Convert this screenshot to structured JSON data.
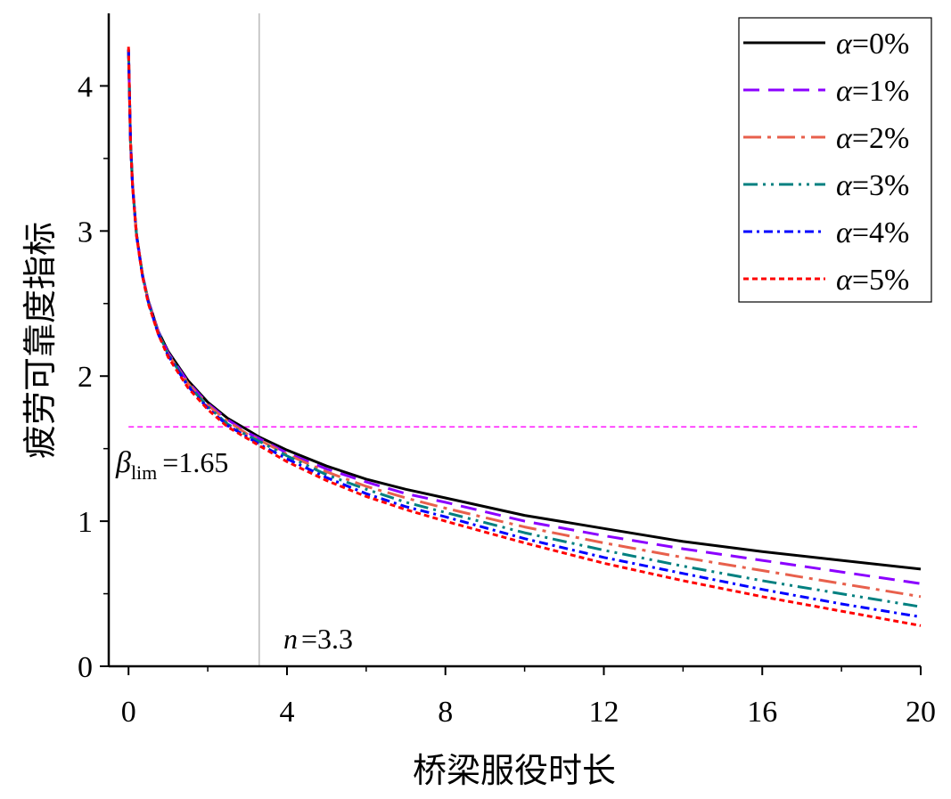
{
  "chart_data": {
    "type": "line",
    "title": "",
    "xlabel": "桥梁服役时长",
    "ylabel": "疲劳可靠度指标",
    "xlim": [
      -0.5,
      20
    ],
    "ylim": [
      0,
      4.5
    ],
    "xticks": [
      0,
      4,
      8,
      12,
      16,
      20
    ],
    "xtick_labels": [
      "0",
      "4",
      "8",
      "12",
      "16",
      "20"
    ],
    "yticks": [
      0,
      1,
      2,
      3,
      4
    ],
    "ytick_labels": [
      "0",
      "1",
      "2",
      "3",
      "4"
    ],
    "grid": false,
    "legend_position": "top-right",
    "x": [
      0,
      0.05,
      0.1,
      0.2,
      0.35,
      0.5,
      0.75,
      1,
      1.5,
      2,
      2.5,
      3,
      3.3,
      4,
      5,
      6,
      7,
      8,
      10,
      12,
      14,
      16,
      18,
      20
    ],
    "series": [
      {
        "name_prefix": "α",
        "name_suffix": "=0%",
        "color": "#000000",
        "dash": "solid",
        "values": [
          4.25,
          3.62,
          3.32,
          2.98,
          2.7,
          2.52,
          2.31,
          2.17,
          1.97,
          1.82,
          1.71,
          1.63,
          1.58,
          1.49,
          1.38,
          1.29,
          1.22,
          1.16,
          1.04,
          0.95,
          0.86,
          0.79,
          0.73,
          0.67
        ]
      },
      {
        "name_prefix": "α",
        "name_suffix": "=1%",
        "color": "#8B00FF",
        "dash": "dashed",
        "values": [
          4.25,
          3.62,
          3.32,
          2.98,
          2.7,
          2.52,
          2.31,
          2.16,
          1.96,
          1.81,
          1.7,
          1.61,
          1.57,
          1.47,
          1.36,
          1.27,
          1.19,
          1.13,
          1.0,
          0.9,
          0.81,
          0.73,
          0.65,
          0.57
        ]
      },
      {
        "name_prefix": "α",
        "name_suffix": "=2%",
        "color": "#E8604C",
        "dash": "dashdot",
        "values": [
          4.25,
          3.62,
          3.32,
          2.98,
          2.7,
          2.52,
          2.3,
          2.15,
          1.95,
          1.8,
          1.69,
          1.6,
          1.56,
          1.46,
          1.34,
          1.24,
          1.16,
          1.09,
          0.96,
          0.85,
          0.75,
          0.66,
          0.57,
          0.48
        ]
      },
      {
        "name_prefix": "α",
        "name_suffix": "=3%",
        "color": "#008080",
        "dash": "dashdotdot",
        "values": [
          4.25,
          3.62,
          3.32,
          2.98,
          2.7,
          2.51,
          2.3,
          2.15,
          1.94,
          1.79,
          1.67,
          1.59,
          1.55,
          1.45,
          1.32,
          1.22,
          1.13,
          1.06,
          0.92,
          0.8,
          0.69,
          0.59,
          0.5,
          0.41
        ]
      },
      {
        "name_prefix": "α",
        "name_suffix": "=4%",
        "color": "#0000FF",
        "dash": "dashdot-dense",
        "values": [
          4.25,
          3.62,
          3.31,
          2.97,
          2.69,
          2.51,
          2.29,
          2.14,
          1.93,
          1.78,
          1.66,
          1.58,
          1.53,
          1.43,
          1.3,
          1.19,
          1.1,
          1.03,
          0.88,
          0.75,
          0.64,
          0.53,
          0.43,
          0.34
        ]
      },
      {
        "name_prefix": "α",
        "name_suffix": "=5%",
        "color": "#FF0000",
        "dash": "dotted",
        "values": [
          4.27,
          3.62,
          3.31,
          2.97,
          2.69,
          2.5,
          2.29,
          2.13,
          1.92,
          1.77,
          1.65,
          1.57,
          1.52,
          1.41,
          1.28,
          1.17,
          1.08,
          1.0,
          0.85,
          0.71,
          0.59,
          0.48,
          0.38,
          0.28
        ]
      }
    ],
    "reference_lines": {
      "horizontal": {
        "y": 1.65,
        "color": "#FF00FF"
      },
      "vertical": {
        "x": 3.3,
        "color": "#AAAAAA"
      }
    },
    "annotations": {
      "beta": {
        "symbol": "β",
        "subscript": "lim",
        "value_text": "=1.65"
      },
      "n": {
        "symbol": "n",
        "value_text": "=3.3"
      }
    }
  }
}
